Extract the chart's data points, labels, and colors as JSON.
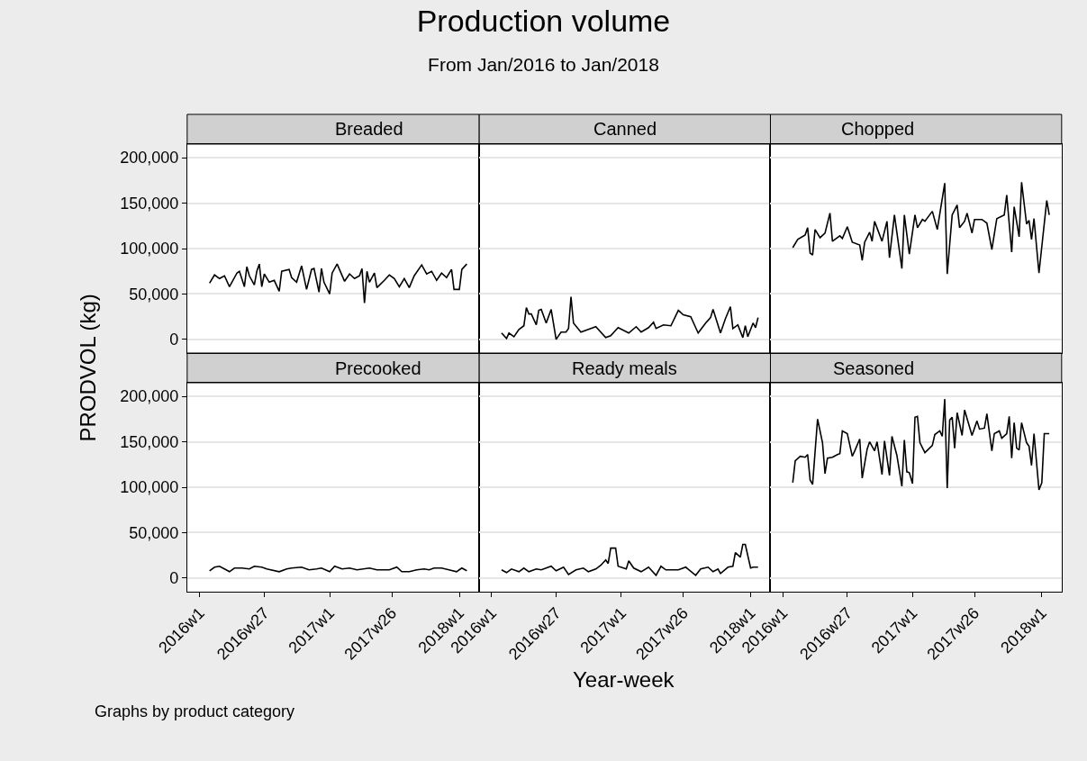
{
  "chart_data": [
    {
      "type": "other",
      "title": "Production volume",
      "subtitle": "From Jan/2016 to Jan/2018",
      "xlabel": "Year-week",
      "ylabel": "PRODVOL (kg)",
      "annotations": [
        "Graphs by product category"
      ]
    },
    {
      "type": "line",
      "title": "Breaded",
      "color": "#000000",
      "tick_labels": "y",
      "grid": "y",
      "xlim": [
        "2015-11-27",
        "2018-02-26"
      ],
      "ylim": [
        -15000,
        215000
      ],
      "yticks": [
        {
          "value": 0,
          "label": "0"
        },
        {
          "value": 50000,
          "label": "50,000"
        },
        {
          "value": 100000,
          "label": "100,000"
        },
        {
          "value": 150000,
          "label": "150,000"
        },
        {
          "value": 200000,
          "label": "200,000"
        }
      ],
      "x": [
        "2016-01-29",
        "2016-02-12",
        "2016-02-26",
        "2016-03-11",
        "2016-03-25",
        "2016-04-15",
        "2016-04-22",
        "2016-05-06",
        "2016-05-13",
        "2016-05-20",
        "2016-06-03",
        "2016-06-10",
        "2016-06-17",
        "2016-06-24",
        "2016-07-01",
        "2016-07-15",
        "2016-07-29",
        "2016-08-12",
        "2016-08-19",
        "2016-09-09",
        "2016-09-16",
        "2016-09-30",
        "2016-10-14",
        "2016-10-28",
        "2016-11-11",
        "2016-11-18",
        "2016-12-02",
        "2016-12-09",
        "2016-12-16",
        "2017-01-01",
        "2017-01-08",
        "2017-01-22",
        "2017-02-12",
        "2017-02-26",
        "2017-03-12",
        "2017-03-26",
        "2017-04-02",
        "2017-04-09",
        "2017-04-16",
        "2017-04-23",
        "2017-05-07",
        "2017-05-14",
        "2017-06-04",
        "2017-06-18",
        "2017-07-02",
        "2017-07-16",
        "2017-07-30",
        "2017-08-13",
        "2017-08-27",
        "2017-09-17",
        "2017-10-01",
        "2017-10-15",
        "2017-10-29",
        "2017-11-12",
        "2017-11-26",
        "2017-12-10",
        "2017-12-17",
        "2018-01-01",
        "2018-01-08",
        "2018-01-22"
      ],
      "values": [
        62000,
        71000,
        67000,
        70000,
        58000,
        73000,
        75000,
        58000,
        80000,
        70000,
        60000,
        75000,
        83000,
        58000,
        72000,
        63000,
        65000,
        53000,
        75000,
        77000,
        68000,
        63000,
        81000,
        55000,
        77000,
        78000,
        52000,
        78000,
        63000,
        50000,
        73000,
        83000,
        64000,
        72000,
        67000,
        70000,
        78000,
        40000,
        75000,
        63000,
        73000,
        57000,
        65000,
        71000,
        67000,
        58000,
        67000,
        57000,
        70000,
        82000,
        72000,
        75000,
        65000,
        73000,
        68000,
        77000,
        55000,
        55000,
        77000,
        83000
      ]
    },
    {
      "type": "line",
      "title": "Canned",
      "color": "#000000",
      "tick_labels": false,
      "grid": "y",
      "xlim": [
        "2015-11-27",
        "2018-02-26"
      ],
      "ylim": [
        -15000,
        215000
      ],
      "yticks": [
        0,
        50000,
        100000,
        150000,
        200000
      ],
      "x": [
        "2016-01-29",
        "2016-02-12",
        "2016-02-19",
        "2016-03-04",
        "2016-03-18",
        "2016-04-01",
        "2016-04-08",
        "2016-04-15",
        "2016-04-22",
        "2016-05-06",
        "2016-05-13",
        "2016-05-20",
        "2016-06-03",
        "2016-06-17",
        "2016-07-01",
        "2016-07-15",
        "2016-07-29",
        "2016-08-05",
        "2016-08-12",
        "2016-08-19",
        "2016-09-09",
        "2016-10-14",
        "2016-10-21",
        "2016-11-18",
        "2016-12-02",
        "2016-12-23",
        "2017-01-22",
        "2017-02-12",
        "2017-02-26",
        "2017-03-19",
        "2017-04-02",
        "2017-04-09",
        "2017-04-30",
        "2017-05-21",
        "2017-06-11",
        "2017-06-25",
        "2017-07-16",
        "2017-07-30",
        "2017-08-06",
        "2017-08-27",
        "2017-09-10",
        "2017-09-17",
        "2017-10-08",
        "2017-10-22",
        "2017-11-05",
        "2017-11-12",
        "2017-11-26",
        "2017-12-10",
        "2017-12-17",
        "2017-12-24",
        "2018-01-08",
        "2018-01-15",
        "2018-01-22"
      ],
      "values": [
        7000,
        1000,
        7000,
        3000,
        11000,
        15000,
        35000,
        28000,
        28000,
        16000,
        32000,
        33000,
        18000,
        33000,
        0,
        8000,
        8000,
        12000,
        47000,
        18000,
        8000,
        13000,
        14000,
        2000,
        4000,
        13000,
        7000,
        14000,
        8000,
        13000,
        19000,
        12000,
        16000,
        15000,
        32000,
        27000,
        25000,
        13000,
        7000,
        18000,
        24000,
        33000,
        7000,
        23000,
        36000,
        12000,
        16000,
        2000,
        15000,
        3000,
        18000,
        13000,
        24000
      ]
    },
    {
      "type": "line",
      "title": "Chopped",
      "color": "#000000",
      "tick_labels": false,
      "grid": "y",
      "xlim": [
        "2015-11-27",
        "2018-02-26"
      ],
      "ylim": [
        -15000,
        215000
      ],
      "yticks": [
        0,
        50000,
        100000,
        150000,
        200000
      ],
      "x": [
        "2016-01-29",
        "2016-02-12",
        "2016-03-04",
        "2016-03-11",
        "2016-03-18",
        "2016-03-25",
        "2016-04-01",
        "2016-04-15",
        "2016-04-29",
        "2016-05-13",
        "2016-05-20",
        "2016-06-10",
        "2016-06-17",
        "2016-07-01",
        "2016-07-15",
        "2016-08-05",
        "2016-08-12",
        "2016-08-19",
        "2016-09-02",
        "2016-09-09",
        "2016-09-16",
        "2016-10-07",
        "2016-10-21",
        "2016-10-28",
        "2016-11-11",
        "2016-12-02",
        "2016-12-09",
        "2016-12-23",
        "2017-01-08",
        "2017-01-15",
        "2017-01-29",
        "2017-02-05",
        "2017-02-26",
        "2017-03-12",
        "2017-04-02",
        "2017-04-09",
        "2017-04-23",
        "2017-05-07",
        "2017-05-14",
        "2017-05-28",
        "2017-06-04",
        "2017-06-18",
        "2017-06-25",
        "2017-07-16",
        "2017-07-30",
        "2017-08-13",
        "2017-08-27",
        "2017-09-17",
        "2017-09-24",
        "2017-10-08",
        "2017-10-15",
        "2017-10-29",
        "2017-11-05",
        "2017-11-19",
        "2017-11-26",
        "2017-12-03",
        "2017-12-10",
        "2017-12-24",
        "2018-01-15",
        "2018-01-22"
      ],
      "values": [
        101000,
        110000,
        115000,
        123000,
        95000,
        93000,
        121000,
        112000,
        117000,
        139000,
        108000,
        114000,
        111000,
        124000,
        107000,
        104000,
        87000,
        107000,
        118000,
        108000,
        130000,
        108000,
        130000,
        90000,
        137000,
        78000,
        137000,
        94000,
        137000,
        123000,
        132000,
        130000,
        141000,
        121000,
        172000,
        72000,
        137000,
        148000,
        123000,
        130000,
        139000,
        117000,
        132000,
        132000,
        128000,
        99000,
        133000,
        137000,
        159000,
        96000,
        146000,
        113000,
        173000,
        127000,
        131000,
        110000,
        133000,
        73000,
        153000,
        137000
      ]
    },
    {
      "type": "line",
      "title": "Precooked",
      "color": "#000000",
      "grid": "y",
      "xlim": [
        "2015-11-27",
        "2018-02-26"
      ],
      "ylim": [
        -15000,
        215000
      ],
      "xticks": [
        {
          "value": "2016-01-01",
          "label": "2016w1"
        },
        {
          "value": "2016-07-01",
          "label": "2016w27"
        },
        {
          "value": "2017-01-01",
          "label": "2017w1"
        },
        {
          "value": "2017-06-25",
          "label": "2017w26"
        },
        {
          "value": "2018-01-01",
          "label": "2018w1"
        }
      ],
      "yticks": [
        {
          "value": 0,
          "label": "0"
        },
        {
          "value": 50000,
          "label": "50,000"
        },
        {
          "value": 100000,
          "label": "100,000"
        },
        {
          "value": 150000,
          "label": "150,000"
        },
        {
          "value": 200000,
          "label": "200,000"
        }
      ],
      "x": [
        "2016-01-29",
        "2016-02-12",
        "2016-02-26",
        "2016-03-11",
        "2016-03-25",
        "2016-04-08",
        "2016-04-29",
        "2016-05-20",
        "2016-06-03",
        "2016-06-24",
        "2016-07-08",
        "2016-08-12",
        "2016-09-02",
        "2016-09-16",
        "2016-10-14",
        "2016-11-04",
        "2016-11-25",
        "2016-12-09",
        "2017-01-01",
        "2017-01-15",
        "2017-02-05",
        "2017-02-26",
        "2017-03-19",
        "2017-04-23",
        "2017-05-14",
        "2017-06-18",
        "2017-07-09",
        "2017-07-23",
        "2017-08-13",
        "2017-09-03",
        "2017-09-24",
        "2017-10-08",
        "2017-10-22",
        "2017-11-12",
        "2017-12-03",
        "2017-12-24",
        "2018-01-08",
        "2018-01-22"
      ],
      "values": [
        8000,
        12000,
        13000,
        10000,
        7000,
        11000,
        11000,
        10000,
        13000,
        12000,
        10000,
        7000,
        10000,
        11000,
        12000,
        9000,
        10000,
        11000,
        7000,
        13000,
        10000,
        11000,
        9000,
        11000,
        9000,
        9000,
        12000,
        7000,
        7000,
        9000,
        10000,
        9000,
        11000,
        11000,
        9000,
        7000,
        11000,
        8000
      ]
    },
    {
      "type": "line",
      "title": "Ready meals",
      "color": "#000000",
      "tick_labels": "x",
      "grid": "y",
      "xlim": [
        "2015-11-27",
        "2018-02-26"
      ],
      "ylim": [
        -15000,
        215000
      ],
      "xticks": [
        {
          "value": "2016-01-01",
          "label": "2016w1"
        },
        {
          "value": "2016-07-01",
          "label": "2016w27"
        },
        {
          "value": "2017-01-01",
          "label": "2017w1"
        },
        {
          "value": "2017-06-25",
          "label": "2017w26"
        },
        {
          "value": "2018-01-01",
          "label": "2018w1"
        }
      ],
      "yticks": [
        0,
        50000,
        100000,
        150000,
        200000
      ],
      "x": [
        "2016-01-29",
        "2016-02-12",
        "2016-02-26",
        "2016-03-18",
        "2016-04-01",
        "2016-04-15",
        "2016-05-06",
        "2016-05-20",
        "2016-06-17",
        "2016-07-01",
        "2016-07-22",
        "2016-08-05",
        "2016-08-26",
        "2016-09-16",
        "2016-09-30",
        "2016-10-21",
        "2016-11-04",
        "2016-11-18",
        "2016-11-25",
        "2016-12-02",
        "2016-12-16",
        "2016-12-23",
        "2017-01-15",
        "2017-01-22",
        "2017-02-05",
        "2017-02-26",
        "2017-03-19",
        "2017-04-09",
        "2017-04-23",
        "2017-05-07",
        "2017-06-11",
        "2017-07-02",
        "2017-07-30",
        "2017-08-13",
        "2017-09-03",
        "2017-09-17",
        "2017-10-01",
        "2017-10-08",
        "2017-10-29",
        "2017-11-12",
        "2017-11-19",
        "2017-12-03",
        "2017-12-10",
        "2017-12-17",
        "2018-01-01",
        "2018-01-08",
        "2018-01-22"
      ],
      "values": [
        9000,
        6000,
        10000,
        7000,
        11000,
        7000,
        10000,
        9000,
        13000,
        8000,
        12000,
        4000,
        9000,
        11000,
        7000,
        10000,
        14000,
        20000,
        16000,
        33000,
        33000,
        13000,
        10000,
        19000,
        11000,
        7000,
        12000,
        3000,
        13000,
        9000,
        9000,
        12000,
        3000,
        10000,
        12000,
        7000,
        10000,
        5000,
        12000,
        13000,
        28000,
        23000,
        37000,
        37000,
        11000,
        12000,
        12000
      ]
    },
    {
      "type": "line",
      "title": "Seasoned",
      "color": "#000000",
      "tick_labels": "x",
      "grid": "y",
      "xlim": [
        "2015-11-27",
        "2018-02-26"
      ],
      "ylim": [
        -15000,
        215000
      ],
      "xticks": [
        {
          "value": "2016-01-01",
          "label": "2016w1"
        },
        {
          "value": "2016-07-01",
          "label": "2016w27"
        },
        {
          "value": "2017-01-01",
          "label": "2017w1"
        },
        {
          "value": "2017-06-25",
          "label": "2017w26"
        },
        {
          "value": "2018-01-01",
          "label": "2018w1"
        }
      ],
      "yticks": [
        0,
        50000,
        100000,
        150000,
        200000
      ],
      "x": [
        "2016-01-29",
        "2016-02-05",
        "2016-02-19",
        "2016-03-04",
        "2016-03-11",
        "2016-03-18",
        "2016-03-25",
        "2016-04-08",
        "2016-04-22",
        "2016-04-29",
        "2016-05-06",
        "2016-05-20",
        "2016-06-03",
        "2016-06-10",
        "2016-06-17",
        "2016-07-01",
        "2016-07-15",
        "2016-07-22",
        "2016-08-05",
        "2016-08-12",
        "2016-08-26",
        "2016-09-02",
        "2016-09-16",
        "2016-09-23",
        "2016-10-07",
        "2016-10-14",
        "2016-10-28",
        "2016-11-04",
        "2016-11-18",
        "2016-12-02",
        "2016-12-09",
        "2016-12-16",
        "2016-12-23",
        "2017-01-01",
        "2017-01-08",
        "2017-01-15",
        "2017-01-22",
        "2017-02-05",
        "2017-02-26",
        "2017-03-05",
        "2017-03-19",
        "2017-03-26",
        "2017-04-02",
        "2017-04-09",
        "2017-04-16",
        "2017-04-23",
        "2017-04-30",
        "2017-05-07",
        "2017-05-21",
        "2017-05-28",
        "2017-06-18",
        "2017-07-02",
        "2017-07-09",
        "2017-07-23",
        "2017-07-30",
        "2017-08-13",
        "2017-08-20",
        "2017-09-03",
        "2017-09-10",
        "2017-09-24",
        "2017-10-01",
        "2017-10-08",
        "2017-10-15",
        "2017-10-22",
        "2017-10-29",
        "2017-11-05",
        "2017-11-19",
        "2017-11-26",
        "2017-12-03",
        "2017-12-10",
        "2017-12-24",
        "2018-01-01",
        "2018-01-08",
        "2018-01-22"
      ],
      "values": [
        105000,
        129000,
        134000,
        133000,
        136000,
        108000,
        103000,
        175000,
        149000,
        115000,
        132000,
        133000,
        136000,
        137000,
        162000,
        159000,
        134000,
        140000,
        153000,
        110000,
        142000,
        150000,
        140000,
        150000,
        114000,
        151000,
        113000,
        156000,
        135000,
        101000,
        152000,
        117000,
        116000,
        104000,
        177000,
        178000,
        149000,
        138000,
        146000,
        158000,
        162000,
        156000,
        197000,
        99000,
        174000,
        177000,
        143000,
        182000,
        157000,
        185000,
        157000,
        173000,
        164000,
        165000,
        181000,
        140000,
        159000,
        162000,
        154000,
        159000,
        178000,
        132000,
        171000,
        143000,
        141000,
        171000,
        149000,
        145000,
        124000,
        159000,
        97000,
        105000,
        159000,
        159000
      ]
    }
  ]
}
